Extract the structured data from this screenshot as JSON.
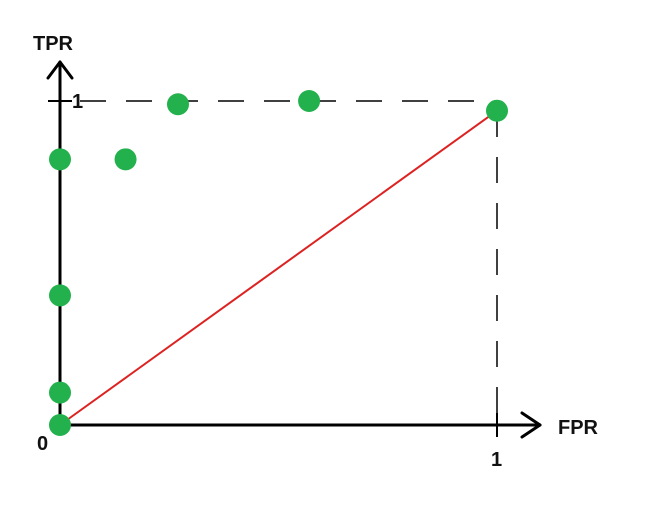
{
  "chart_data": {
    "type": "scatter",
    "xlabel": "FPR",
    "ylabel": "TPR",
    "xlim": [
      0,
      1
    ],
    "ylim": [
      0,
      1
    ],
    "origin_label": "0",
    "x_tick_label": "1",
    "y_tick_label": "1",
    "grid": false,
    "points": [
      {
        "x": 0.0,
        "y": 0.0
      },
      {
        "x": 0.0,
        "y": 0.1
      },
      {
        "x": 0.0,
        "y": 0.4
      },
      {
        "x": 0.0,
        "y": 0.82
      },
      {
        "x": 0.15,
        "y": 0.82
      },
      {
        "x": 0.27,
        "y": 0.99
      },
      {
        "x": 0.57,
        "y": 1.0
      },
      {
        "x": 1.0,
        "y": 0.97
      }
    ],
    "diagonal": {
      "from": [
        0,
        0
      ],
      "to": [
        1,
        0.97
      ]
    },
    "colors": {
      "points": "#22b14c",
      "diagonal": "#dd2222",
      "axes": "#000000"
    }
  }
}
